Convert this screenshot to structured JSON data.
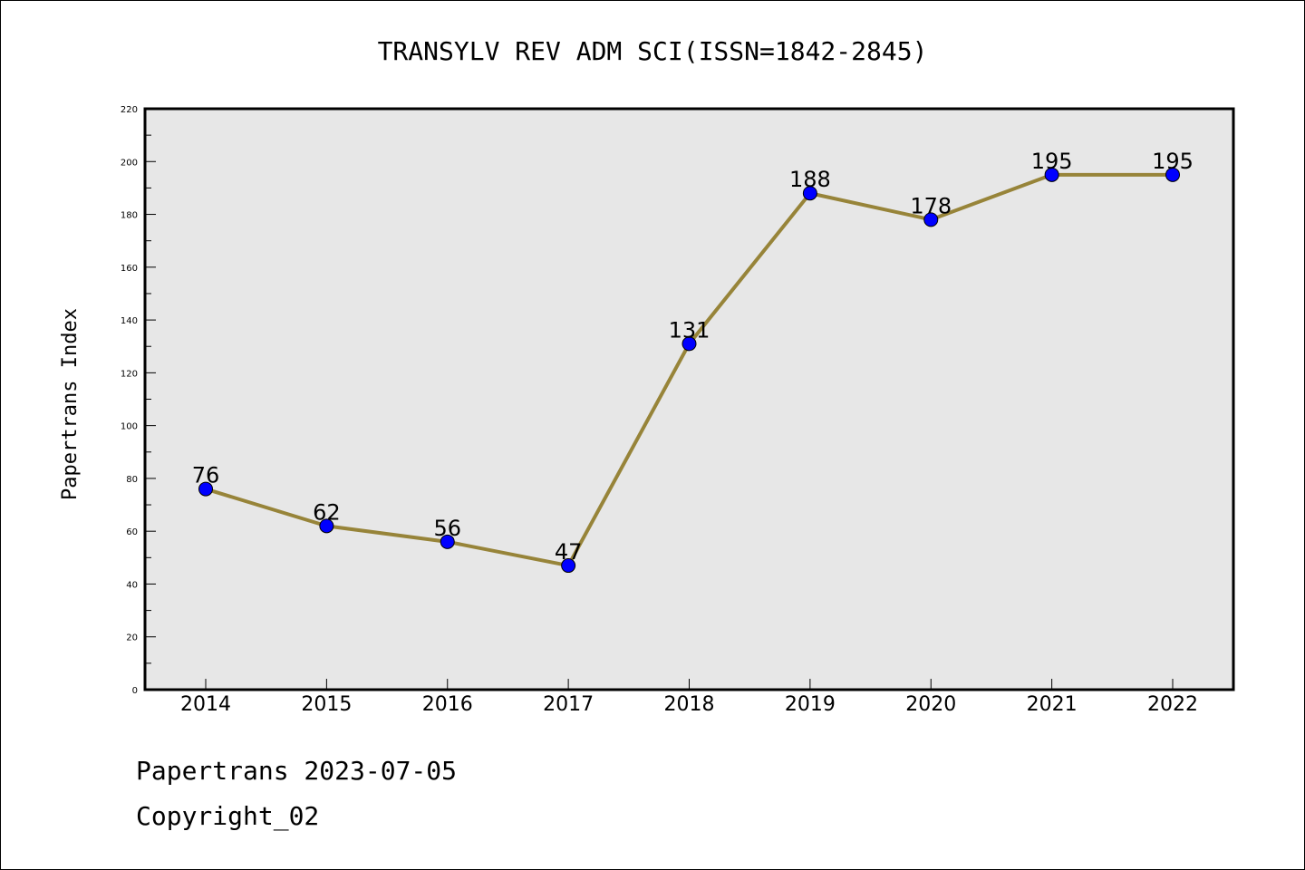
{
  "footer": {
    "line1": "Papertrans 2023-07-05",
    "line2": "Copyright_02"
  },
  "colors": {
    "plot_background": "#e7e7e7",
    "line": "#978439",
    "marker": "#0000ff"
  },
  "chart_data": {
    "type": "line",
    "title": "TRANSYLV REV ADM SCI(ISSN=1842-2845)",
    "xlabel": "",
    "ylabel": "Papertrans Index",
    "categories": [
      "2014",
      "2015",
      "2016",
      "2017",
      "2018",
      "2019",
      "2020",
      "2021",
      "2022"
    ],
    "values": [
      76,
      62,
      56,
      47,
      131,
      188,
      178,
      195,
      195
    ],
    "data_labels": [
      "76",
      "62",
      "56",
      "47",
      "131",
      "188",
      "178",
      "195",
      "195"
    ],
    "ylim": [
      0,
      220
    ],
    "yticks": [
      0,
      20,
      40,
      60,
      80,
      100,
      120,
      140,
      160,
      180,
      200,
      220
    ],
    "grid": false,
    "legend": "none"
  }
}
